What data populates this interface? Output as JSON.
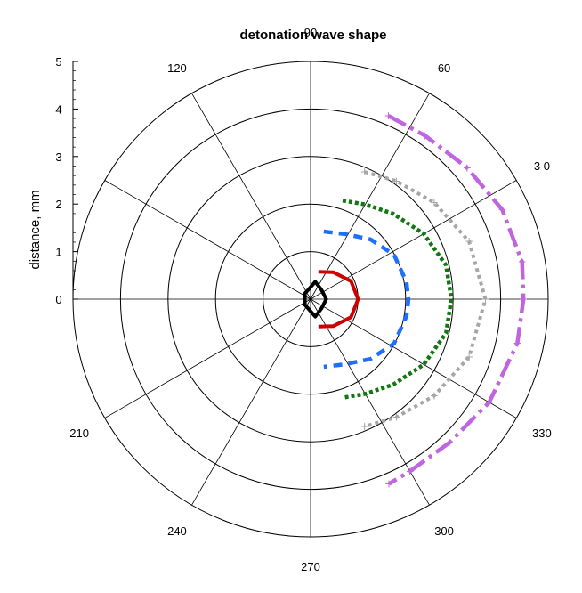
{
  "chart_data": {
    "type": "polar-line",
    "title": "detonation wave shape",
    "ylabel": "distance, mm",
    "r_ticks": [
      0,
      1,
      2,
      3,
      4,
      5
    ],
    "r_range": [
      0,
      5
    ],
    "angle_labels": [
      {
        "deg": 90,
        "text": "90"
      },
      {
        "deg": 120,
        "text": "120"
      },
      {
        "deg": 60,
        "text": "60"
      },
      {
        "deg": 30,
        "text": "3 0"
      },
      {
        "deg": 210,
        "text": "210"
      },
      {
        "deg": 330,
        "text": "330"
      },
      {
        "deg": 240,
        "text": "240"
      },
      {
        "deg": 300,
        "text": "300"
      },
      {
        "deg": 270,
        "text": "270"
      }
    ],
    "grid": true,
    "series": [
      {
        "color": "#000000",
        "dash": "solid",
        "width": 4,
        "marker": false,
        "points": [
          [
            0.38,
            75
          ],
          [
            0.3,
            40
          ],
          [
            0.33,
            0
          ],
          [
            0.3,
            -40
          ],
          [
            0.38,
            -75
          ],
          [
            0.2,
            -105
          ],
          [
            0.17,
            -135
          ],
          [
            0.12,
            180
          ],
          [
            0.17,
            135
          ],
          [
            0.2,
            105
          ]
        ]
      },
      {
        "color": "#cc0000",
        "dash": "solid",
        "width": 4,
        "marker": false,
        "points": [
          [
            0.6,
            74
          ],
          [
            0.74,
            50
          ],
          [
            0.93,
            24
          ],
          [
            1.0,
            0
          ],
          [
            0.93,
            -24
          ],
          [
            0.74,
            -50
          ],
          [
            0.6,
            -74
          ]
        ]
      },
      {
        "color": "#1f6fff",
        "dash": "10,7",
        "width": 4.5,
        "marker": false,
        "points": [
          [
            1.45,
            79
          ],
          [
            1.55,
            62
          ],
          [
            1.78,
            45
          ],
          [
            1.99,
            28
          ],
          [
            2.05,
            10
          ],
          [
            2.06,
            0
          ],
          [
            2.05,
            -10
          ],
          [
            1.99,
            -28
          ],
          [
            1.78,
            -45
          ],
          [
            1.55,
            -62
          ],
          [
            1.45,
            -79
          ]
        ]
      },
      {
        "color": "#117711",
        "dash": "4,3",
        "width": 4.5,
        "marker": false,
        "points": [
          [
            2.18,
            72
          ],
          [
            2.3,
            60
          ],
          [
            2.5,
            46
          ],
          [
            2.75,
            30
          ],
          [
            2.94,
            14
          ],
          [
            2.96,
            0
          ],
          [
            2.94,
            -14
          ],
          [
            2.75,
            -30
          ],
          [
            2.5,
            -46
          ],
          [
            2.3,
            -60
          ],
          [
            2.18,
            -72
          ]
        ]
      },
      {
        "color": "#a6a6a6",
        "dash": "4,4",
        "width": 4,
        "marker": true,
        "points": [
          [
            2.91,
            67
          ],
          [
            3.07,
            54
          ],
          [
            3.3,
            38
          ],
          [
            3.55,
            20
          ],
          [
            3.68,
            0
          ],
          [
            3.55,
            -20
          ],
          [
            3.3,
            -38
          ],
          [
            3.07,
            -54
          ],
          [
            2.91,
            -67
          ]
        ]
      },
      {
        "color": "#c065e0",
        "dash": "22,6,4,6",
        "width": 4.5,
        "marker": true,
        "points": [
          [
            4.19,
            67
          ],
          [
            4.2,
            55
          ],
          [
            4.3,
            40
          ],
          [
            4.45,
            25
          ],
          [
            4.52,
            10
          ],
          [
            4.48,
            0
          ],
          [
            4.45,
            -12
          ],
          [
            4.34,
            -30
          ],
          [
            4.2,
            -46
          ],
          [
            4.18,
            -60
          ],
          [
            4.22,
            -67
          ]
        ]
      }
    ]
  }
}
